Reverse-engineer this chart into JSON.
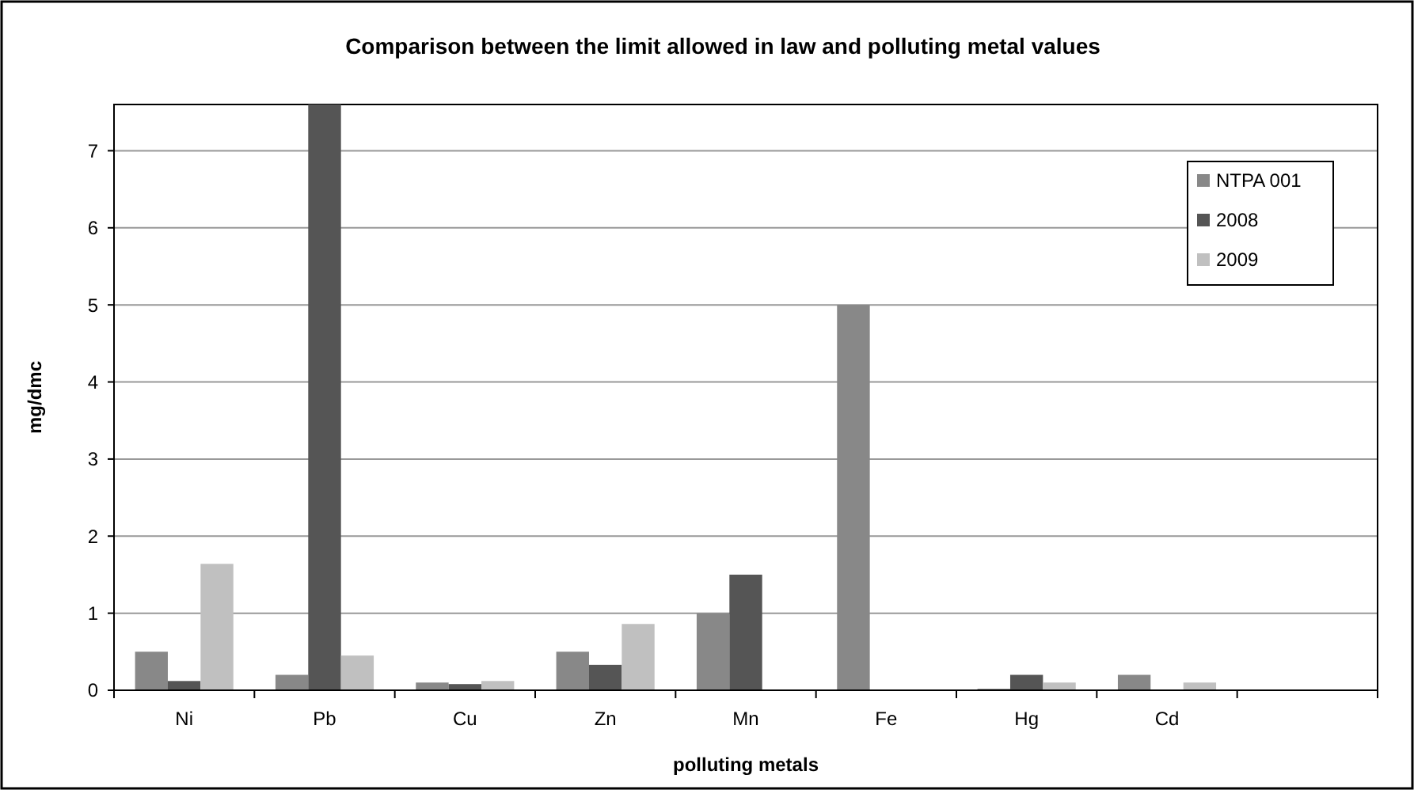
{
  "chart_data": {
    "type": "bar",
    "title": "Comparison between the limit allowed in law and polluting metal values",
    "xlabel": "polluting metals",
    "ylabel": "mg/dmc",
    "categories": [
      "Ni",
      "Pb",
      "Cu",
      "Zn",
      "Mn",
      "Fe",
      "Hg",
      "Cd",
      null
    ],
    "series": [
      {
        "name": "NTPA 001",
        "color": "#888888",
        "values": [
          0.5,
          0.2,
          0.1,
          0.5,
          1.0,
          5.0,
          0.02,
          0.2,
          null
        ]
      },
      {
        "name": "2008",
        "color": "#555555",
        "values": [
          0.12,
          7.6,
          0.08,
          0.33,
          1.5,
          null,
          0.2,
          null,
          null
        ]
      },
      {
        "name": "2009",
        "color": "#c0c0c0",
        "values": [
          1.64,
          0.45,
          0.12,
          0.86,
          null,
          null,
          0.1,
          0.1,
          null
        ]
      }
    ],
    "ylim": [
      0,
      7.6
    ],
    "yticks": [
      0,
      1,
      2,
      3,
      4,
      5,
      6,
      7
    ],
    "grid": "y",
    "legend": "top right"
  }
}
